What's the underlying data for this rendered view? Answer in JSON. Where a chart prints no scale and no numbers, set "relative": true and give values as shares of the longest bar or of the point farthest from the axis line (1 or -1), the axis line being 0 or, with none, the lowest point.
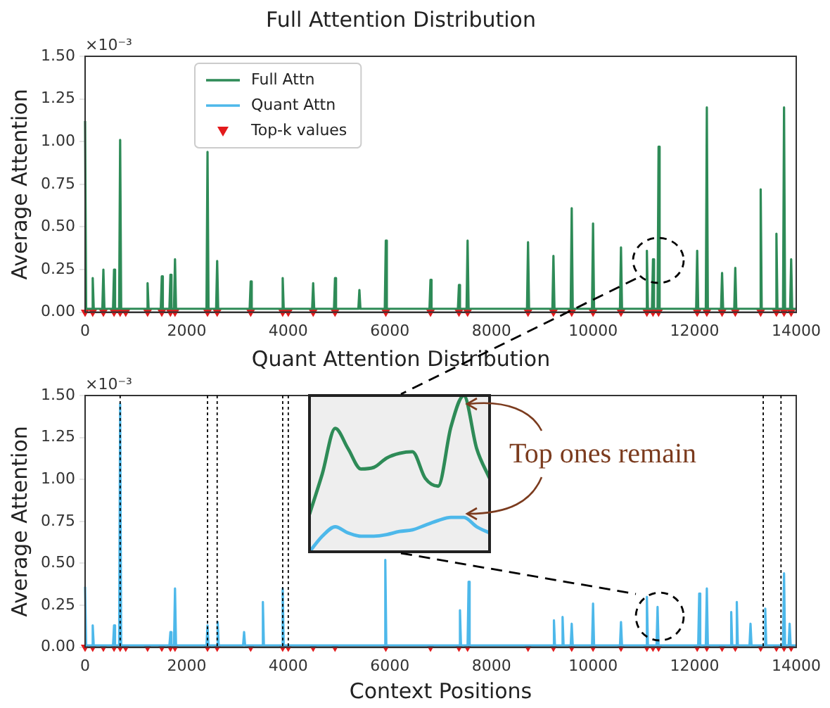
{
  "chart_data": [
    {
      "type": "line",
      "title": "Full Attention Distribution",
      "ylabel": "Average Attention",
      "annotations": [
        "×10⁻³"
      ],
      "legend": "top left",
      "grid": false,
      "xlim": [
        0,
        14000
      ],
      "xticks": [
        0,
        2000,
        4000,
        6000,
        8000,
        10000,
        12000,
        14000
      ],
      "ylim": [
        0,
        1.5
      ],
      "yticks": [
        {
          "value": 0,
          "label": "0.00"
        },
        {
          "value": 0.25,
          "label": "0.25"
        },
        {
          "value": 0.5,
          "label": "0.50"
        },
        {
          "value": 0.75,
          "label": "0.75"
        },
        {
          "value": 1,
          "label": "1.00"
        },
        {
          "value": 1.25,
          "label": "1.25"
        },
        {
          "value": 1.5,
          "label": "1.50"
        }
      ],
      "series": [
        {
          "name": "Full Attn",
          "type": "line",
          "color": "#2e8b57",
          "marker": "none",
          "x": [
            0,
            20,
            130,
            150,
            170,
            340,
            360,
            380,
            550,
            570,
            590,
            670,
            690,
            710,
            1210,
            1230,
            1250,
            1490,
            1510,
            1530,
            1660,
            1680,
            1700,
            1750,
            1770,
            1790,
            2390,
            2410,
            2430,
            2580,
            2600,
            2620,
            3240,
            3260,
            3280,
            3870,
            3890,
            3910,
            4470,
            4490,
            4510,
            4900,
            4920,
            4940,
            5380,
            5400,
            5420,
            5900,
            5920,
            5940,
            6780,
            6800,
            6820,
            7340,
            7360,
            7380,
            7510,
            7530,
            7550,
            8700,
            8720,
            8740,
            9200,
            9220,
            9240,
            9560,
            9580,
            9600,
            9980,
            10000,
            10020,
            10530,
            10550,
            10570,
            11040,
            11060,
            11080,
            11160,
            11180,
            11200,
            11270,
            11290,
            11310,
            12030,
            12050,
            12070,
            12220,
            12240,
            12260,
            12520,
            12540,
            12560,
            12780,
            12800,
            12820,
            13280,
            13300,
            13320,
            13590,
            13610,
            13630,
            13740,
            13760,
            13780,
            13880,
            13900,
            13920,
            14000
          ],
          "values": [
            1.12,
            0.02,
            0.02,
            0.2,
            0.02,
            0.02,
            0.25,
            0.02,
            0.02,
            0.25,
            0.02,
            0.02,
            1.01,
            0.02,
            0.02,
            0.17,
            0.02,
            0.02,
            0.21,
            0.02,
            0.02,
            0.22,
            0.02,
            0.02,
            0.31,
            0.02,
            0.02,
            0.94,
            0.02,
            0.02,
            0.3,
            0.02,
            0.02,
            0.18,
            0.02,
            0.02,
            0.2,
            0.02,
            0.02,
            0.17,
            0.02,
            0.02,
            0.2,
            0.02,
            0.02,
            0.13,
            0.02,
            0.02,
            0.42,
            0.02,
            0.02,
            0.19,
            0.02,
            0.02,
            0.16,
            0.02,
            0.02,
            0.42,
            0.02,
            0.02,
            0.41,
            0.02,
            0.02,
            0.33,
            0.02,
            0.02,
            0.61,
            0.02,
            0.02,
            0.52,
            0.02,
            0.02,
            0.38,
            0.02,
            0.02,
            0.36,
            0.02,
            0.02,
            0.31,
            0.02,
            0.02,
            0.97,
            0.02,
            0.02,
            0.36,
            0.02,
            0.02,
            1.2,
            0.02,
            0.02,
            0.23,
            0.02,
            0.02,
            0.26,
            0.02,
            0.02,
            0.72,
            0.02,
            0.02,
            0.46,
            0.02,
            0.02,
            1.2,
            0.02,
            0.02,
            0.31,
            0.02,
            0.02
          ]
        },
        {
          "name": "Top-k values",
          "type": "scatter",
          "color": "#e31a1c",
          "marker": "triangle",
          "x": [
            0,
            150,
            360,
            570,
            690,
            800,
            1230,
            1510,
            1680,
            1770,
            2410,
            2600,
            3260,
            3890,
            4000,
            4490,
            4920,
            5920,
            6800,
            7360,
            7530,
            8720,
            9220,
            9580,
            10000,
            10550,
            11060,
            11180,
            11290,
            12050,
            12240,
            12540,
            12800,
            13300,
            13610,
            13760,
            13900
          ],
          "values": [
            0,
            0,
            0,
            0,
            0,
            0,
            0,
            0,
            0,
            0,
            0,
            0,
            0,
            0,
            0,
            0,
            0,
            0,
            0,
            0,
            0,
            0,
            0,
            0,
            0,
            0,
            0,
            0,
            0,
            0,
            0,
            0,
            0,
            0,
            0,
            0,
            0
          ]
        }
      ]
    },
    {
      "type": "line",
      "title": "Quant Attention Distribution",
      "xlabel": "Context Positions",
      "ylabel": "Average Attention",
      "annotations": [
        "×10⁻³",
        "Top ones remain"
      ],
      "legend": false,
      "grid": false,
      "xlim": [
        0,
        14000
      ],
      "xticks": [
        0,
        2000,
        4000,
        6000,
        8000,
        10000,
        12000,
        14000
      ],
      "ylim": [
        0,
        1.5
      ],
      "yticks": [
        {
          "value": 0,
          "label": "0.00"
        },
        {
          "value": 0.25,
          "label": "0.25"
        },
        {
          "value": 0.5,
          "label": "0.50"
        },
        {
          "value": 0.75,
          "label": "0.75"
        },
        {
          "value": 1,
          "label": "1.00"
        },
        {
          "value": 1.25,
          "label": "1.25"
        },
        {
          "value": 1.5,
          "label": "1.50"
        }
      ],
      "ref_lines": [
        {
          "axis": "x",
          "value": 690,
          "color": "#000000",
          "line_style": "dotted"
        },
        {
          "axis": "x",
          "value": 2410,
          "color": "#000000",
          "line_style": "dotted"
        },
        {
          "axis": "x",
          "value": 2600,
          "color": "#000000",
          "line_style": "dotted"
        },
        {
          "axis": "x",
          "value": 3890,
          "color": "#000000",
          "line_style": "dotted"
        },
        {
          "axis": "x",
          "value": 4000,
          "color": "#000000",
          "line_style": "dotted"
        },
        {
          "axis": "x",
          "value": 13350,
          "color": "#000000",
          "line_style": "dotted"
        },
        {
          "axis": "x",
          "value": 13700,
          "color": "#000000",
          "line_style": "dotted"
        }
      ],
      "series": [
        {
          "name": "Quant Attn",
          "type": "line",
          "color": "#4db8ea",
          "marker": "none",
          "x": [
            0,
            20,
            130,
            150,
            170,
            550,
            570,
            590,
            670,
            690,
            710,
            1660,
            1680,
            1700,
            1750,
            1770,
            1790,
            2390,
            2410,
            2430,
            2590,
            2610,
            2630,
            3110,
            3130,
            3150,
            3480,
            3500,
            3520,
            3870,
            3890,
            3910,
            5890,
            5910,
            5930,
            7360,
            7380,
            7400,
            7530,
            7550,
            7570,
            9210,
            9230,
            9250,
            9380,
            9400,
            9420,
            9560,
            9580,
            9600,
            9980,
            10000,
            10020,
            10530,
            10550,
            10570,
            11040,
            11060,
            11080,
            11250,
            11270,
            11290,
            12070,
            12090,
            12110,
            12220,
            12240,
            12260,
            12700,
            12720,
            12740,
            12810,
            12830,
            12850,
            13080,
            13100,
            13120,
            13370,
            13390,
            13410,
            13740,
            13760,
            13780,
            13850,
            13870,
            13890,
            14000
          ],
          "values": [
            0.36,
            0.01,
            0.01,
            0.13,
            0.01,
            0.01,
            0.13,
            0.01,
            0.01,
            1.45,
            0.01,
            0.01,
            0.09,
            0.01,
            0.01,
            0.35,
            0.01,
            0.01,
            0.13,
            0.01,
            0.01,
            0.15,
            0.01,
            0.01,
            0.09,
            0.01,
            0.01,
            0.27,
            0.01,
            0.01,
            0.35,
            0.01,
            0.01,
            0.52,
            0.01,
            0.01,
            0.22,
            0.01,
            0.01,
            0.39,
            0.01,
            0.01,
            0.16,
            0.01,
            0.01,
            0.18,
            0.01,
            0.01,
            0.14,
            0.01,
            0.01,
            0.26,
            0.01,
            0.01,
            0.15,
            0.01,
            0.01,
            0.3,
            0.01,
            0.01,
            0.24,
            0.01,
            0.01,
            0.32,
            0.01,
            0.01,
            0.35,
            0.01,
            0.01,
            0.21,
            0.01,
            0.01,
            0.27,
            0.01,
            0.01,
            0.14,
            0.01,
            0.01,
            0.23,
            0.01,
            0.01,
            0.44,
            0.01,
            0.01,
            0.14,
            0.01,
            0.01
          ]
        },
        {
          "type": "scatter",
          "color": "#e31a1c",
          "marker": "triangle",
          "x": [
            0,
            150,
            360,
            570,
            690,
            800,
            1230,
            1510,
            1680,
            1770,
            2410,
            2600,
            3260,
            3890,
            4000,
            4490,
            4920,
            5920,
            6800,
            7360,
            7530,
            8720,
            9220,
            9580,
            10000,
            10550,
            11060,
            11180,
            11290,
            12050,
            12240,
            12540,
            12800,
            13300,
            13610,
            13760,
            13900
          ],
          "values": [
            0,
            0,
            0,
            0,
            0,
            0,
            0,
            0,
            0,
            0,
            0,
            0,
            0,
            0,
            0,
            0,
            0,
            0,
            0,
            0,
            0,
            0,
            0,
            0,
            0,
            0,
            0,
            0,
            0,
            0,
            0,
            0,
            0,
            0,
            0,
            0,
            0
          ]
        }
      ]
    },
    {
      "type": "line",
      "relative": true,
      "categories": [
        null,
        null,
        null,
        null,
        null,
        null,
        null,
        null,
        null,
        null,
        null,
        null,
        null,
        null,
        null
      ],
      "series": [
        {
          "color": "#2e8b57",
          "values": [
            0.24,
            0.5,
            0.79,
            0.66,
            0.53,
            0.54,
            0.6,
            0.63,
            0.64,
            0.47,
            0.42,
            0.8,
            1.0,
            0.66,
            0.47
          ]
        },
        {
          "color": "#4db8ea",
          "values": [
            0,
            0.1,
            0.16,
            0.12,
            0.1,
            0.1,
            0.11,
            0.13,
            0.14,
            0.17,
            0.2,
            0.22,
            0.22,
            0.16,
            0.12
          ]
        }
      ]
    }
  ]
}
